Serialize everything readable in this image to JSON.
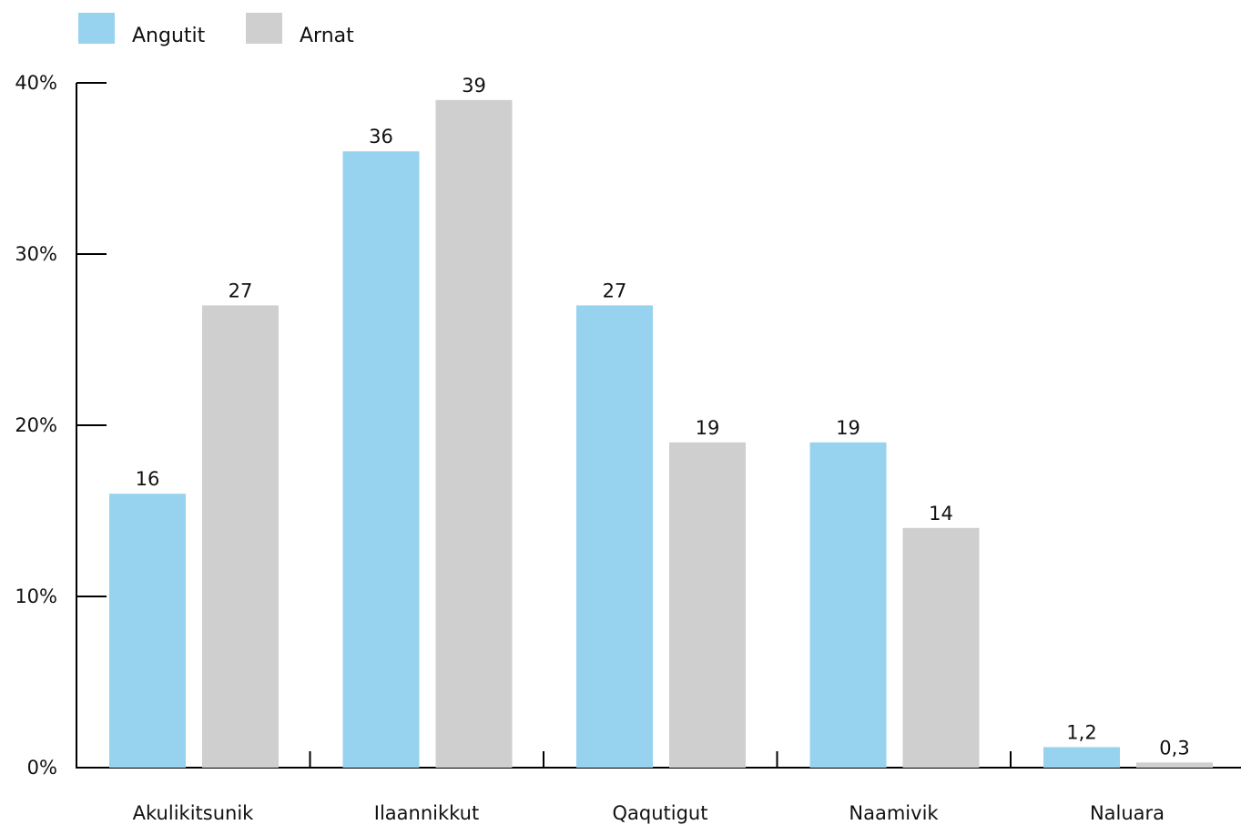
{
  "chart_data": {
    "type": "bar",
    "title": "",
    "xlabel": "",
    "ylabel": "",
    "categories": [
      "Akulikitsunik",
      "Ilaannikkut",
      "Qaqutigut",
      "Naamivik",
      "Naluara"
    ],
    "series": [
      {
        "name": "Angutit",
        "color": "#97d3ef",
        "values": [
          16,
          36,
          27,
          19,
          1.2
        ],
        "labels": [
          "16",
          "36",
          "27",
          "19",
          "1,2"
        ]
      },
      {
        "name": "Arnat",
        "color": "#cfcfcf",
        "values": [
          27,
          39,
          19,
          14,
          0.3
        ],
        "labels": [
          "27",
          "39",
          "19",
          "14",
          "0,3"
        ]
      }
    ],
    "ylim": [
      0,
      40
    ],
    "yticks": [
      0,
      10,
      20,
      30,
      40
    ],
    "ytick_labels": [
      "0%",
      "10%",
      "20%",
      "30%",
      "40%"
    ],
    "grid": false,
    "legend_position": "top-left"
  }
}
